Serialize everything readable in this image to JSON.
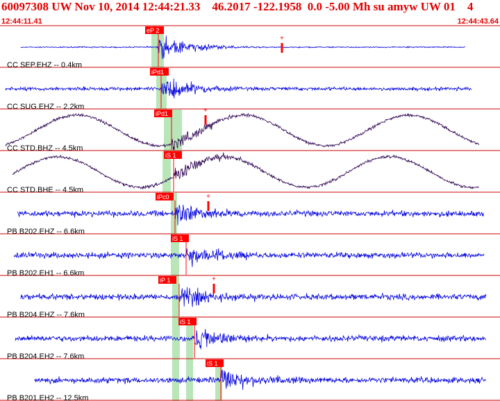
{
  "event": {
    "title": "60097308 UW Nov 10, 2014 12:44:21.33    46.2017 -122.1958  0.0 -5.00 Mh su amyw UW 01    4",
    "time_start": "12:44:11.41",
    "time_end": "12:44:43.64"
  },
  "colors": {
    "header": "#e00000",
    "trace_blue": "#0000dd",
    "trace_dark": "#2a0050",
    "pick_box": "#ff0000",
    "window_band": "#b8e6b8",
    "separator": "#cc0000"
  },
  "traces": [
    {
      "label": "CC SEP.EHZ -- 0.4km",
      "pick": "eP 2",
      "color": "blue",
      "kind": "quake_early"
    },
    {
      "label": "CC SUG.EHZ -- 2.2km",
      "pick": "iPd1",
      "color": "blue",
      "kind": "noisy"
    },
    {
      "label": "CC STD.BHZ -- 4.5km",
      "pick": "iPd1",
      "color": "dark",
      "kind": "wave"
    },
    {
      "label": "CC STD.BHE -- 4.5km",
      "pick": "iS 1",
      "color": "dark",
      "kind": "wave"
    },
    {
      "label": "PB B202.EHZ -- 6.6km",
      "pick": "iPc0",
      "color": "blue",
      "kind": "noisy"
    },
    {
      "label": "PB B202.EH1 -- 6.6km",
      "pick": "iS 1",
      "color": "blue",
      "kind": "noisy"
    },
    {
      "label": "PB B204.EHZ -- 7.6km",
      "pick": "iP 1",
      "color": "blue",
      "kind": "noisy"
    },
    {
      "label": "PB B204.EH2 -- 7.6km",
      "pick": "iS 1",
      "color": "blue",
      "kind": "noisy"
    },
    {
      "label": "PB B201.EH2 -- 12.5km",
      "pick": "iS 1",
      "color": "blue",
      "kind": "noisy"
    }
  ]
}
